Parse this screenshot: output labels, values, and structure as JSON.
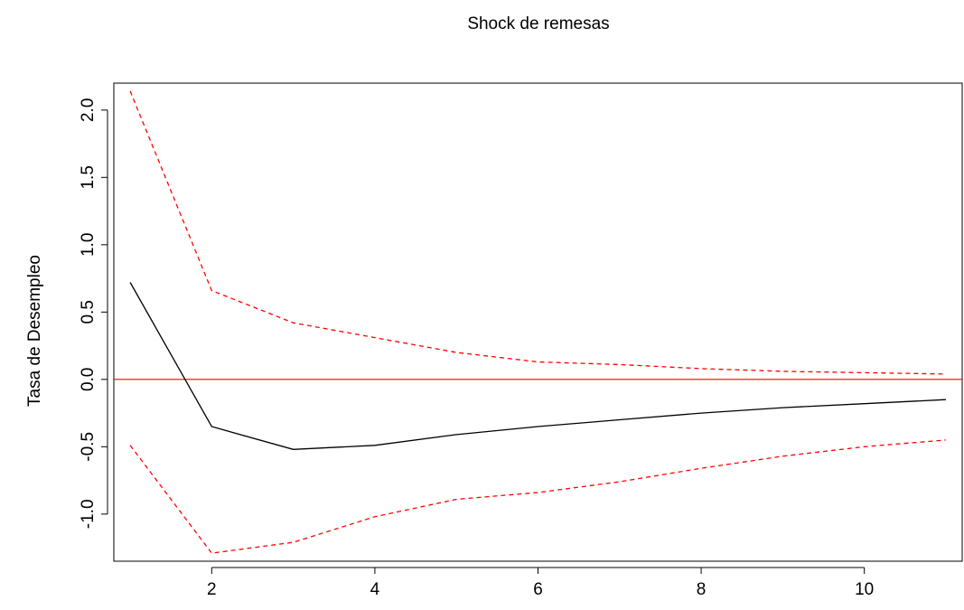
{
  "chart_data": {
    "type": "line",
    "title": "Shock de remesas",
    "xlabel": "",
    "ylabel": "Tasa de Desempleo",
    "xlim": [
      0.8,
      11.2
    ],
    "ylim": [
      -1.35,
      2.2
    ],
    "x_ticks": [
      2,
      4,
      6,
      8,
      10
    ],
    "y_ticks": [
      -1.0,
      -0.5,
      0.0,
      0.5,
      1.0,
      1.5,
      2.0
    ],
    "x_tick_labels": [
      "2",
      "4",
      "6",
      "8",
      "10"
    ],
    "y_tick_labels": [
      "-1.0",
      "-0.5",
      "0.0",
      "0.5",
      "1.0",
      "1.5",
      "2.0"
    ],
    "grid": false,
    "x": [
      1,
      2,
      3,
      4,
      5,
      6,
      7,
      8,
      9,
      10,
      11
    ],
    "series": [
      {
        "key": "response",
        "values": [
          0.72,
          -0.35,
          -0.52,
          -0.49,
          -0.41,
          -0.35,
          -0.3,
          -0.25,
          -0.21,
          -0.18,
          -0.15
        ],
        "color": "#000000",
        "style": "solid"
      },
      {
        "key": "upper",
        "values": [
          2.14,
          0.66,
          0.42,
          0.31,
          0.2,
          0.13,
          0.11,
          0.08,
          0.06,
          0.05,
          0.04
        ],
        "color": "#ff0000",
        "style": "dashed"
      },
      {
        "key": "lower",
        "values": [
          -0.49,
          -1.29,
          -1.21,
          -1.02,
          -0.89,
          -0.84,
          -0.76,
          -0.66,
          -0.57,
          -0.5,
          -0.45
        ],
        "color": "#ff0000",
        "style": "dashed"
      }
    ],
    "reference_line": {
      "y": 0.0,
      "color": "#ff0000"
    }
  }
}
